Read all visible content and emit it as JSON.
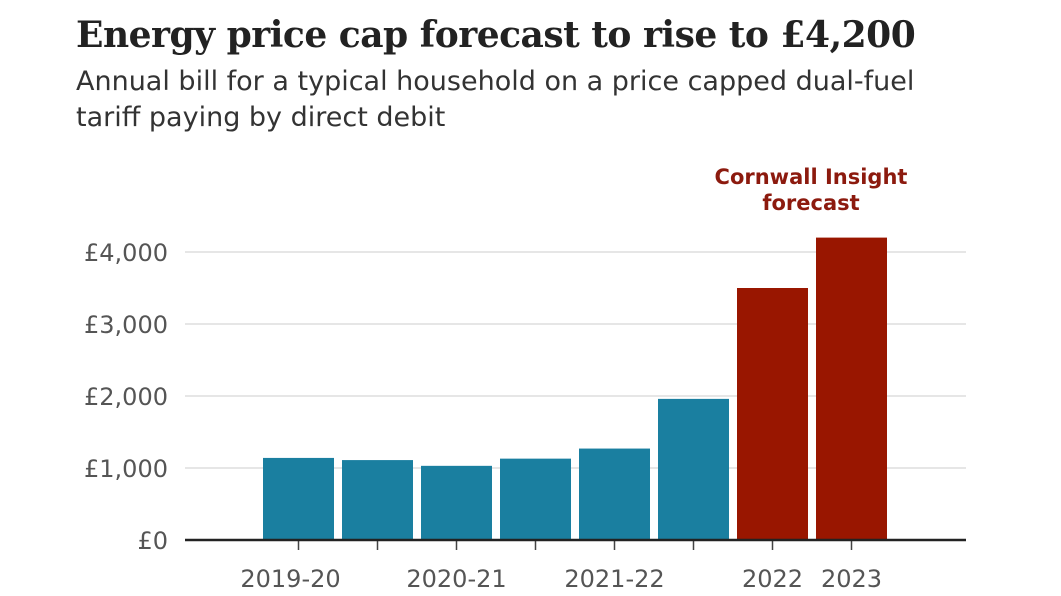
{
  "chart_data": {
    "type": "bar",
    "title": "Energy price cap forecast to rise to £4,200",
    "subtitle": "Annual bill for a typical household on a price capped dual-fuel tariff paying by direct debit",
    "categories": [
      "2019-20",
      "",
      "2020-21",
      "",
      "2021-22",
      "",
      "2022",
      "2023"
    ],
    "values": [
      1140,
      1110,
      1030,
      1130,
      1270,
      1960,
      3500,
      4200
    ],
    "forecast": [
      false,
      false,
      false,
      false,
      false,
      false,
      true,
      true
    ],
    "ylim": [
      0,
      4000
    ],
    "yticks": [
      0,
      1000,
      2000,
      3000,
      4000
    ],
    "ytick_labels": [
      "£0",
      "£1,000",
      "£2,000",
      "£3,000",
      "£4,000"
    ],
    "annotation": [
      "Cornwall Insight",
      "forecast"
    ],
    "grid": true,
    "colors": {
      "actual": "#1a7fa0",
      "forecast": "#991600",
      "annotation": "#8c1a0e"
    }
  }
}
